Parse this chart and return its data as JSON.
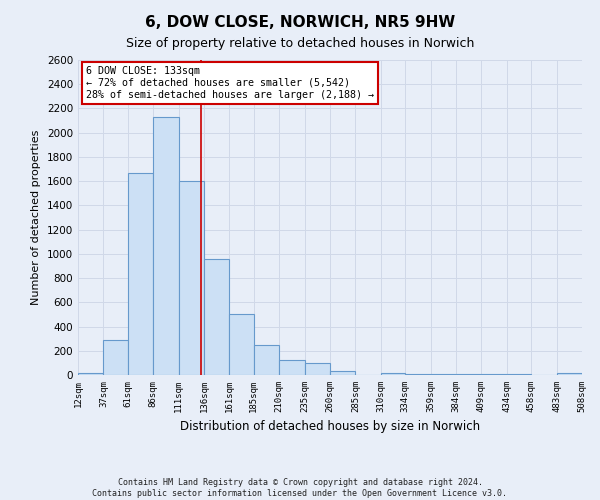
{
  "title": "6, DOW CLOSE, NORWICH, NR5 9HW",
  "subtitle": "Size of property relative to detached houses in Norwich",
  "xlabel": "Distribution of detached houses by size in Norwich",
  "ylabel": "Number of detached properties",
  "bins": [
    12,
    37,
    61,
    86,
    111,
    136,
    161,
    185,
    210,
    235,
    260,
    285,
    310,
    334,
    359,
    384,
    409,
    434,
    458,
    483,
    508
  ],
  "counts": [
    20,
    290,
    1670,
    2130,
    1600,
    960,
    500,
    250,
    125,
    100,
    35,
    0,
    15,
    5,
    5,
    5,
    5,
    5,
    0,
    20
  ],
  "bar_facecolor": "#cce0f5",
  "bar_edgecolor": "#6699cc",
  "grid_color": "#d0d8e8",
  "property_line_x": 133,
  "property_line_color": "#cc0000",
  "annotation_box_edgecolor": "#cc0000",
  "annotation_text_line1": "6 DOW CLOSE: 133sqm",
  "annotation_text_line2": "← 72% of detached houses are smaller (5,542)",
  "annotation_text_line3": "28% of semi-detached houses are larger (2,188) →",
  "ylim": [
    0,
    2600
  ],
  "yticks": [
    0,
    200,
    400,
    600,
    800,
    1000,
    1200,
    1400,
    1600,
    1800,
    2000,
    2200,
    2400,
    2600
  ],
  "tick_labels": [
    "12sqm",
    "37sqm",
    "61sqm",
    "86sqm",
    "111sqm",
    "136sqm",
    "161sqm",
    "185sqm",
    "210sqm",
    "235sqm",
    "260sqm",
    "285sqm",
    "310sqm",
    "334sqm",
    "359sqm",
    "384sqm",
    "409sqm",
    "434sqm",
    "458sqm",
    "483sqm",
    "508sqm"
  ],
  "footnote1": "Contains HM Land Registry data © Crown copyright and database right 2024.",
  "footnote2": "Contains public sector information licensed under the Open Government Licence v3.0.",
  "background_color": "#e8eef8",
  "plot_bg_color": "#e8eef8",
  "title_fontsize": 11,
  "subtitle_fontsize": 9
}
